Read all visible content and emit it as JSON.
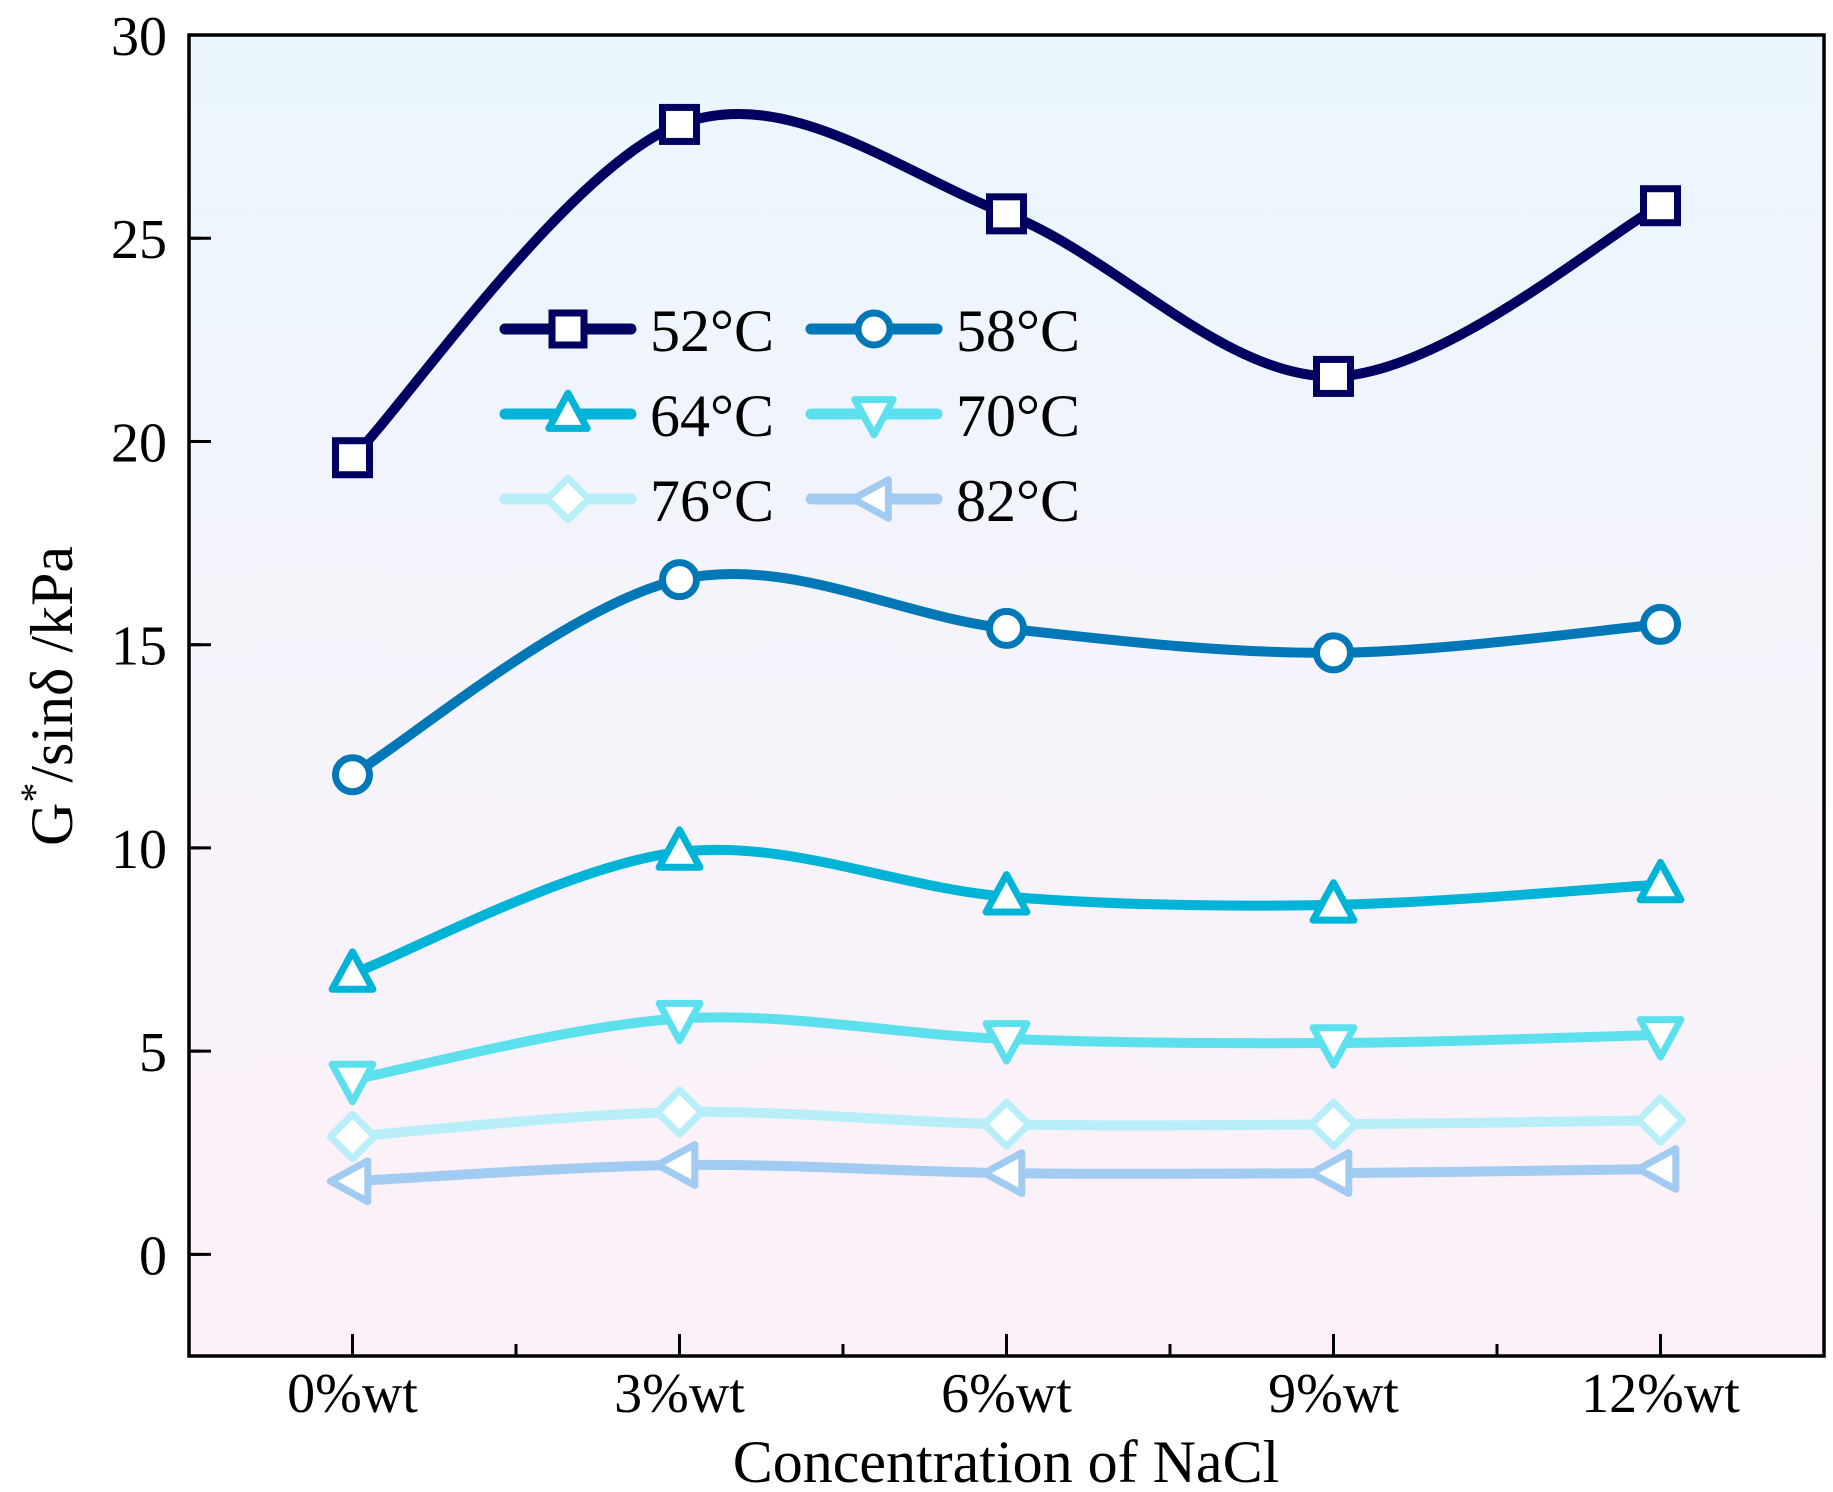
{
  "chart_data": {
    "type": "line",
    "title": "",
    "xlabel": "Concentration of NaCl",
    "ylabel_main": "G",
    "ylabel_sup": "*",
    "ylabel_rest": "/sinδ /kPa",
    "categories": [
      "0%wt",
      "3%wt",
      "6%wt",
      "9%wt",
      "12%wt"
    ],
    "ylim": [
      -2.5,
      30
    ],
    "yticks": [
      0,
      5,
      10,
      15,
      20,
      25,
      30
    ],
    "grid": false,
    "legend_position": "upper-center",
    "background_gradient": [
      "#eaf6fc",
      "#fcf0f8"
    ],
    "series": [
      {
        "name": "52°C",
        "color": "#000060",
        "marker": "square",
        "values": [
          19.6,
          27.8,
          25.6,
          21.6,
          25.8
        ]
      },
      {
        "name": "58°C",
        "color": "#0077b6",
        "marker": "circle",
        "values": [
          11.8,
          16.6,
          15.4,
          14.8,
          15.5
        ]
      },
      {
        "name": "64°C",
        "color": "#00b4d8",
        "marker": "triangle-up",
        "values": [
          6.9,
          9.9,
          8.8,
          8.6,
          9.1
        ]
      },
      {
        "name": "70°C",
        "color": "#5ce0ee",
        "marker": "triangle-down",
        "values": [
          4.3,
          5.8,
          5.3,
          5.2,
          5.4
        ]
      },
      {
        "name": "76°C",
        "color": "#b8eef8",
        "marker": "diamond",
        "values": [
          2.9,
          3.5,
          3.2,
          3.2,
          3.3
        ]
      },
      {
        "name": "82°C",
        "color": "#a2cbf2",
        "marker": "triangle-left",
        "values": [
          1.8,
          2.2,
          2.0,
          2.0,
          2.1
        ]
      }
    ]
  }
}
